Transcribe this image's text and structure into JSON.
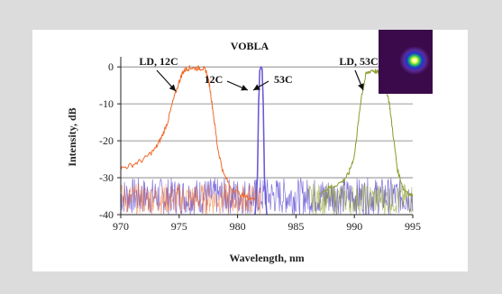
{
  "chart_data": {
    "type": "line",
    "title": "",
    "xlabel": "Wavelength, nm",
    "ylabel": "Intensity, dB",
    "xlim": [
      970,
      995
    ],
    "ylim": [
      -40,
      2
    ],
    "xticks": [
      970,
      975,
      980,
      985,
      990,
      995
    ],
    "yticks": [
      0,
      -10,
      -20,
      -30,
      -40
    ],
    "grid": "horizontal",
    "noise_floor_db": [
      -40,
      -30
    ],
    "series": [
      {
        "color": "#ef6a2a",
        "x": [
          970,
          971,
          972,
          973,
          973.5,
          974,
          974.5,
          975,
          975.3,
          975.6,
          976,
          976.5,
          977,
          977.3,
          977.6,
          977.9,
          978.3,
          978.8,
          979.5,
          980.5,
          981.5
        ],
        "y": [
          -27.5,
          -26.5,
          -25,
          -22,
          -19,
          -15,
          -9,
          -4,
          -1.5,
          -0.5,
          -0.2,
          -0.4,
          -0.3,
          -1,
          -5,
          -12,
          -22,
          -29,
          -33,
          -35,
          -36
        ]
      },
      {
        "color": "#6b5bd6",
        "x": [
          981.5,
          981.7,
          981.8,
          981.9,
          982.0,
          982.1,
          982.2,
          982.3,
          982.5
        ],
        "y": [
          -40,
          -30,
          -10,
          -1,
          0,
          -0.5,
          -10,
          -30,
          -40
        ]
      },
      {
        "color": "#8a9a2a",
        "x": [
          987,
          988,
          989,
          989.5,
          990,
          990.3,
          990.6,
          991,
          991.5,
          992,
          992.4,
          992.7,
          993,
          993.3,
          993.7,
          994.2,
          995
        ],
        "y": [
          -34,
          -32.5,
          -31,
          -29,
          -24,
          -16,
          -8,
          -2,
          -0.8,
          -1.5,
          -3,
          -5,
          -10,
          -18,
          -28,
          -33,
          -35
        ]
      }
    ],
    "annotations": [
      {
        "text": "LD, 12C",
        "x": 974.6,
        "y": -6.5
      },
      {
        "text": "VOBLA",
        "x": 982.0,
        "y": 0.5
      },
      {
        "text": "12C",
        "x": 981.8,
        "y": -5
      },
      {
        "text": "53C",
        "x": 982.1,
        "y": -6
      },
      {
        "text": "LD, 53C",
        "x": 990.5,
        "y": -6.5
      }
    ],
    "inset": {
      "type": "heatmap",
      "subject": "beam spot"
    }
  }
}
